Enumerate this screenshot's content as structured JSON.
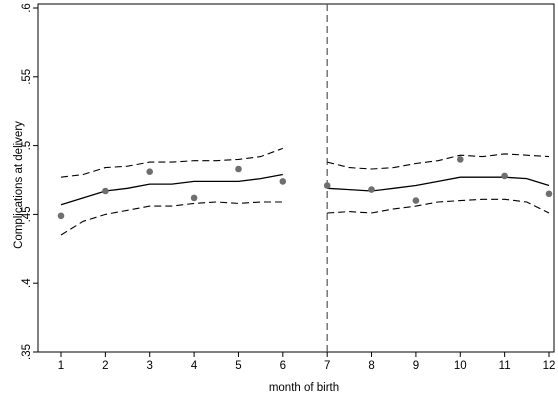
{
  "chart_data": {
    "type": "scatter",
    "title": "",
    "xlabel": "month of birth",
    "ylabel": "Complications at delivery",
    "xlim": [
      1,
      12
    ],
    "ylim": [
      0.35,
      0.6
    ],
    "xticks": [
      1,
      2,
      3,
      4,
      5,
      6,
      7,
      8,
      9,
      10,
      11,
      12
    ],
    "xtick_labels": [
      "1",
      "2",
      "3",
      "4",
      "5",
      "6",
      "7",
      "8",
      "9",
      "10",
      "11",
      "12"
    ],
    "yticks": [
      0.35,
      0.4,
      0.45,
      0.5,
      0.55,
      0.6
    ],
    "ytick_labels": [
      ".35",
      ".4",
      ".45",
      ".5",
      ".55",
      ".6"
    ],
    "grid": false,
    "legend": "none",
    "cutoff_x": 7,
    "colors": {
      "points": "#6e6e6e",
      "lines": "#000000",
      "cutoff": "#555555"
    },
    "points": {
      "x": [
        1,
        2,
        3,
        4,
        5,
        6,
        7,
        8,
        9,
        10,
        11,
        12
      ],
      "y": [
        0.449,
        0.467,
        0.481,
        0.462,
        0.483,
        0.474,
        0.471,
        0.468,
        0.46,
        0.49,
        0.478,
        0.465
      ]
    },
    "segments": [
      {
        "x": [
          1,
          1.5,
          2,
          2.5,
          3,
          3.5,
          4,
          4.5,
          5,
          5.5,
          6
        ],
        "fit": [
          0.457,
          0.462,
          0.467,
          0.469,
          0.472,
          0.472,
          0.474,
          0.474,
          0.474,
          0.476,
          0.479
        ],
        "upper": [
          0.477,
          0.479,
          0.484,
          0.485,
          0.488,
          0.488,
          0.489,
          0.489,
          0.49,
          0.492,
          0.498
        ],
        "lower": [
          0.435,
          0.445,
          0.45,
          0.453,
          0.456,
          0.456,
          0.458,
          0.459,
          0.458,
          0.459,
          0.459
        ]
      },
      {
        "x": [
          7,
          7.5,
          8,
          8.5,
          9,
          9.5,
          10,
          10.5,
          11,
          11.5,
          12
        ],
        "fit": [
          0.469,
          0.468,
          0.467,
          0.469,
          0.471,
          0.474,
          0.477,
          0.477,
          0.477,
          0.476,
          0.471
        ],
        "upper": [
          0.488,
          0.484,
          0.483,
          0.484,
          0.487,
          0.489,
          0.493,
          0.492,
          0.494,
          0.493,
          0.492
        ],
        "lower": [
          0.451,
          0.452,
          0.451,
          0.454,
          0.456,
          0.459,
          0.46,
          0.461,
          0.461,
          0.459,
          0.451
        ]
      }
    ]
  }
}
